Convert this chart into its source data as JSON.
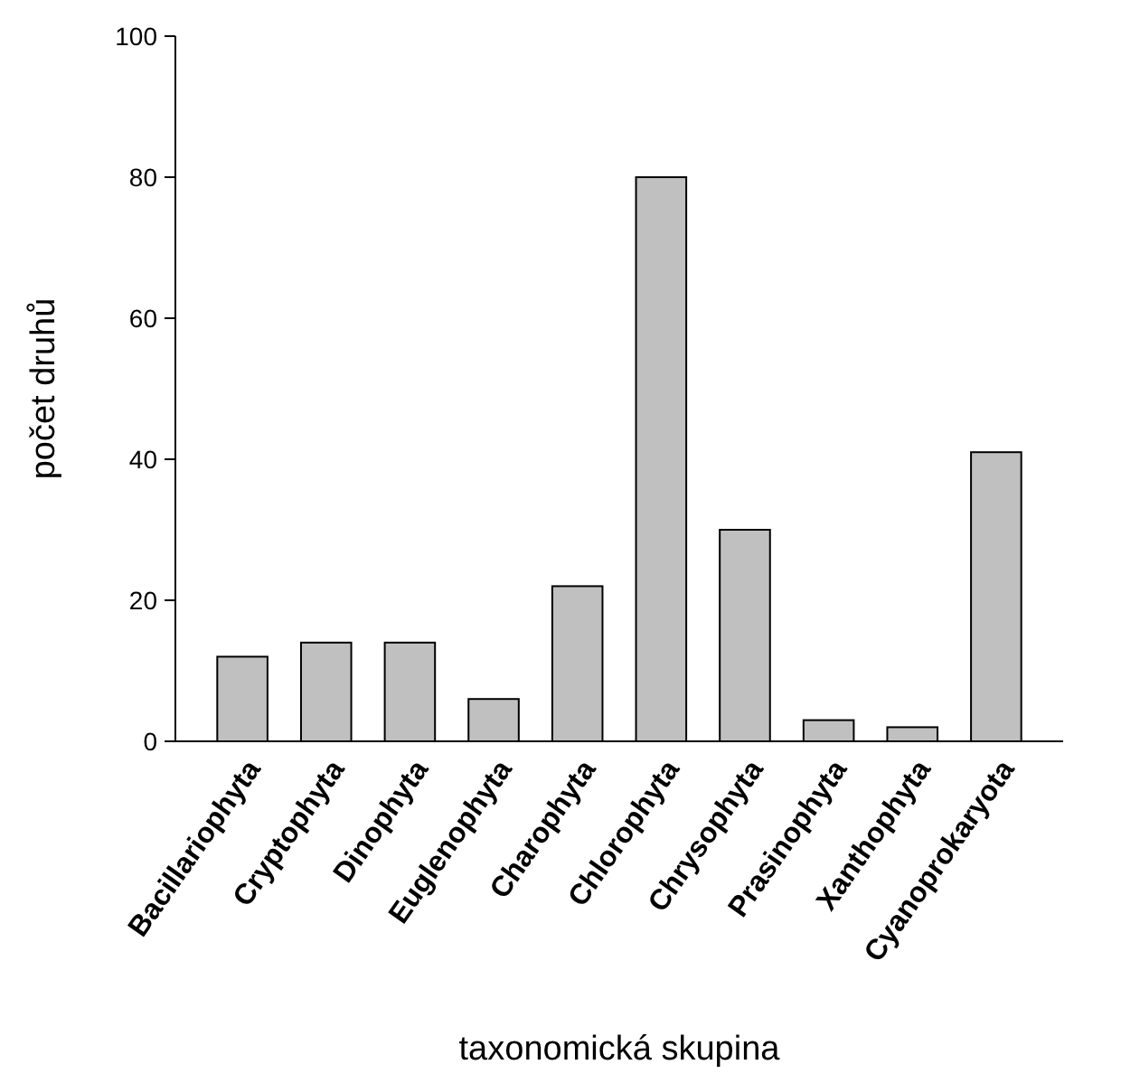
{
  "chart_data": {
    "type": "bar",
    "xlabel": "taxonomická skupina",
    "ylabel": "počet druhů",
    "categories": [
      "Bacillariophyta",
      "Cryptophyta",
      "Dinophyta",
      "Euglenophyta",
      "Charophyta",
      "Chlorophyta",
      "Chrysophyta",
      "Prasinophyta",
      "Xanthophyta",
      "Cyanoprokaryota"
    ],
    "values": [
      12,
      14,
      14,
      6,
      22,
      80,
      30,
      3,
      2,
      41
    ],
    "color": "#c0c0c0",
    "ylim": [
      0,
      100
    ],
    "yticks": [
      0,
      20,
      40,
      60,
      80,
      100
    ]
  }
}
